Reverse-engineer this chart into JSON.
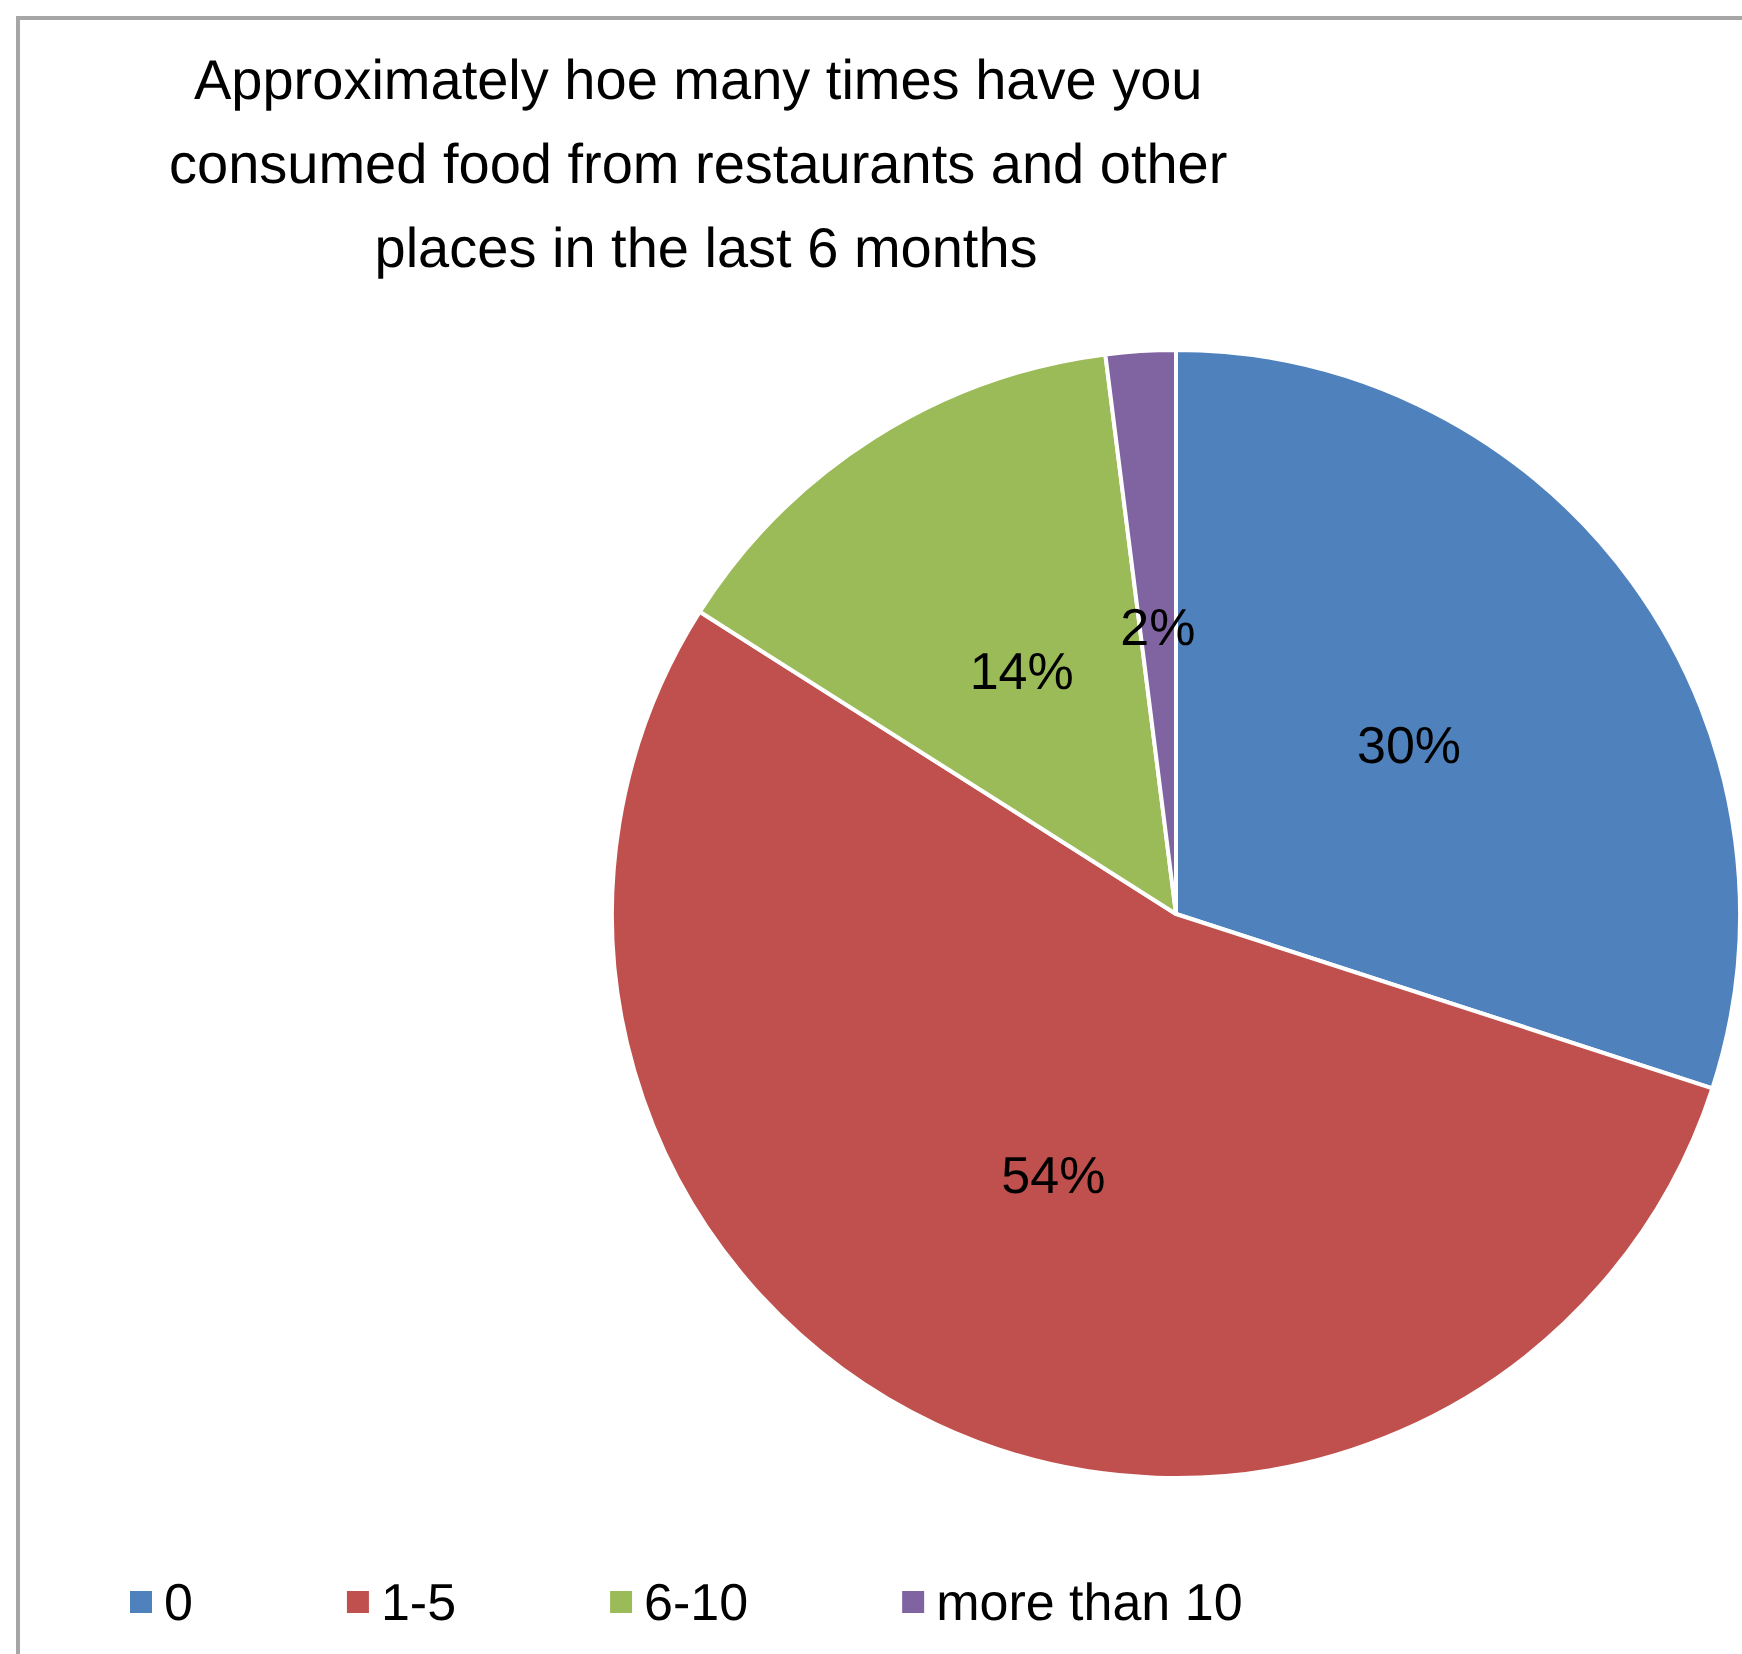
{
  "chart_data": {
    "type": "pie",
    "title": "Approximately hoe many times have you consumed food from restaurants and other places in the last 6 months",
    "categories": [
      "0",
      "1-5",
      "6-10",
      "more than 10"
    ],
    "values": [
      30,
      54,
      14,
      2
    ],
    "colors": [
      "#4f81bd",
      "#c0504d",
      "#9bbb59",
      "#8064a2"
    ],
    "value_labels": [
      "30%",
      "54%",
      "14%",
      "2%"
    ],
    "legend": "bottom"
  }
}
